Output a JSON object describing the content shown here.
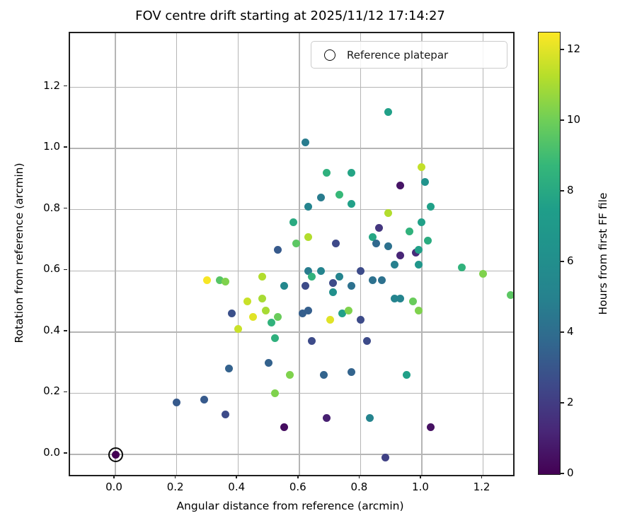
{
  "title": "FOV centre drift starting at 2025/11/12 17:14:27",
  "legend": {
    "label": "Reference platepar",
    "marker": "open-circle"
  },
  "axes": {
    "xlabel": "Angular distance from reference (arcmin)",
    "ylabel": "Rotation from reference (arcmin)",
    "x_tick_labels": [
      "0.0",
      "0.2",
      "0.4",
      "0.6",
      "0.8",
      "1.0",
      "1.2"
    ],
    "y_tick_labels": [
      "0.0",
      "0.2",
      "0.4",
      "0.6",
      "0.8",
      "1.0",
      "1.2"
    ],
    "x_tick_values": [
      0,
      0.2,
      0.4,
      0.6,
      0.8,
      1.0,
      1.2
    ],
    "y_tick_values": [
      0,
      0.2,
      0.4,
      0.6,
      0.8,
      1.0,
      1.2
    ]
  },
  "colorbar": {
    "label": "Hours from first FF file",
    "tick_labels": [
      "0",
      "2",
      "4",
      "6",
      "8",
      "10",
      "12"
    ],
    "tick_values": [
      0,
      2,
      4,
      6,
      8,
      10,
      12
    ],
    "vmin": 0,
    "vmax": 12.5,
    "colormap": "viridis",
    "stops": [
      "#440154",
      "#482878",
      "#3e4989",
      "#31688e",
      "#26828e",
      "#21918c",
      "#1f9e89",
      "#35b779",
      "#6ece58",
      "#b5de2b",
      "#fde725"
    ]
  },
  "chart_data": {
    "type": "scatter",
    "title": "FOV centre drift starting at 2025/11/12 17:14:27",
    "xlabel": "Angular distance from reference (arcmin)",
    "ylabel": "Rotation from reference (arcmin)",
    "color_label": "Hours from first FF file",
    "xlim": [
      -0.148,
      1.298
    ],
    "ylim": [
      -0.067,
      1.377
    ],
    "grid": true,
    "legend_position": "upper right",
    "hours_range": [
      0,
      12.5
    ],
    "reference_point": {
      "x": 0.0,
      "y": 0.0,
      "hours": 0.0
    },
    "points_format": [
      "angular_distance_arcmin",
      "rotation_arcmin",
      "hours_from_first_FF"
    ],
    "points": [
      [
        0.62,
        1.02,
        4.7
      ],
      [
        0.89,
        1.12,
        7.6
      ],
      [
        0.69,
        0.92,
        8.4
      ],
      [
        0.77,
        0.92,
        7.8
      ],
      [
        1.0,
        0.94,
        11.5
      ],
      [
        1.01,
        0.89,
        6.4
      ],
      [
        0.93,
        0.88,
        0.6
      ],
      [
        1.03,
        0.81,
        7.6
      ],
      [
        0.89,
        0.79,
        11.2
      ],
      [
        1.0,
        0.76,
        7.6
      ],
      [
        0.86,
        0.74,
        1.8
      ],
      [
        0.96,
        0.73,
        8.5
      ],
      [
        0.84,
        0.71,
        7.9
      ],
      [
        0.85,
        0.69,
        3.8
      ],
      [
        0.89,
        0.68,
        4.2
      ],
      [
        0.93,
        0.65,
        1.2
      ],
      [
        0.98,
        0.66,
        1.4
      ],
      [
        0.99,
        0.67,
        7.6
      ],
      [
        1.02,
        0.7,
        8.2
      ],
      [
        0.91,
        0.62,
        4.9
      ],
      [
        0.99,
        0.62,
        6.8
      ],
      [
        1.13,
        0.61,
        8.5
      ],
      [
        1.2,
        0.59,
        10.3
      ],
      [
        0.84,
        0.57,
        4.2
      ],
      [
        0.87,
        0.57,
        4.2
      ],
      [
        0.91,
        0.51,
        5.2
      ],
      [
        0.93,
        0.51,
        5.2
      ],
      [
        0.97,
        0.5,
        9.9
      ],
      [
        0.99,
        0.47,
        10.3
      ],
      [
        1.29,
        0.52,
        9.6
      ],
      [
        0.95,
        0.26,
        7.6
      ],
      [
        0.83,
        0.12,
        5.2
      ],
      [
        1.03,
        0.09,
        0.5
      ],
      [
        0.88,
        -0.01,
        2.2
      ],
      [
        0.67,
        0.84,
        4.7
      ],
      [
        0.73,
        0.85,
        8.8
      ],
      [
        0.77,
        0.82,
        7.6
      ],
      [
        0.63,
        0.81,
        5.2
      ],
      [
        0.58,
        0.76,
        8.1
      ],
      [
        0.63,
        0.71,
        11.2
      ],
      [
        0.59,
        0.69,
        9.6
      ],
      [
        0.72,
        0.69,
        2.5
      ],
      [
        0.53,
        0.67,
        3.2
      ],
      [
        0.8,
        0.6,
        2.6
      ],
      [
        0.63,
        0.6,
        4.7
      ],
      [
        0.64,
        0.58,
        8.5
      ],
      [
        0.67,
        0.6,
        5.2
      ],
      [
        0.62,
        0.55,
        2.6
      ],
      [
        0.73,
        0.58,
        5.2
      ],
      [
        0.71,
        0.56,
        2.6
      ],
      [
        0.71,
        0.53,
        6.2
      ],
      [
        0.77,
        0.55,
        4.2
      ],
      [
        0.55,
        0.55,
        5.5
      ],
      [
        0.48,
        0.58,
        11.2
      ],
      [
        0.3,
        0.57,
        12.4
      ],
      [
        0.34,
        0.57,
        9.5
      ],
      [
        0.36,
        0.565,
        10.3
      ],
      [
        0.61,
        0.46,
        3.4
      ],
      [
        0.63,
        0.47,
        3.4
      ],
      [
        0.7,
        0.44,
        12.0
      ],
      [
        0.74,
        0.46,
        7.6
      ],
      [
        0.76,
        0.47,
        10.3
      ],
      [
        0.8,
        0.44,
        2.6
      ],
      [
        0.38,
        0.46,
        2.8
      ],
      [
        0.43,
        0.5,
        11.6
      ],
      [
        0.48,
        0.51,
        11.0
      ],
      [
        0.45,
        0.45,
        12.0
      ],
      [
        0.49,
        0.47,
        11.0
      ],
      [
        0.53,
        0.45,
        9.9
      ],
      [
        0.51,
        0.43,
        8.5
      ],
      [
        0.4,
        0.41,
        11.6
      ],
      [
        0.52,
        0.38,
        8.4
      ],
      [
        0.64,
        0.37,
        2.6
      ],
      [
        0.82,
        0.37,
        2.6
      ],
      [
        0.37,
        0.28,
        3.5
      ],
      [
        0.5,
        0.3,
        3.5
      ],
      [
        0.57,
        0.26,
        10.3
      ],
      [
        0.68,
        0.26,
        3.6
      ],
      [
        0.77,
        0.27,
        3.6
      ],
      [
        0.52,
        0.2,
        10.3
      ],
      [
        0.69,
        0.12,
        1.0
      ],
      [
        0.55,
        0.09,
        0.4
      ],
      [
        0.2,
        0.17,
        3.2
      ],
      [
        0.29,
        0.18,
        3.2
      ],
      [
        0.36,
        0.13,
        2.6
      ]
    ]
  }
}
